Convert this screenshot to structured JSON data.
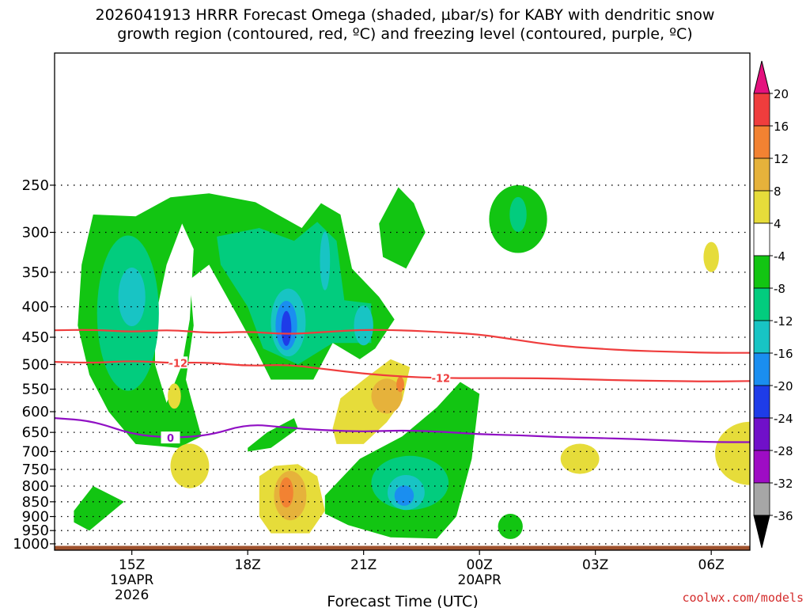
{
  "title_line1": "2026041913 HRRR Forecast Omega (shaded, µbar/s) for KABY with dendritic snow",
  "title_line2": "growth region (contoured, red, ºC) and freezing level (contoured, purple, ºC)",
  "watermark": "coolwx.com/models",
  "chart_data": {
    "type": "heatmap",
    "xlabel": "Forecast Time (UTC)",
    "x_ticks": [
      {
        "label": "15Z",
        "hour": 15,
        "sub": [
          "19APR",
          "2026"
        ]
      },
      {
        "label": "18Z",
        "hour": 18,
        "sub": []
      },
      {
        "label": "21Z",
        "hour": 21,
        "sub": []
      },
      {
        "label": "00Z",
        "hour": 24,
        "sub": [
          "20APR"
        ]
      },
      {
        "label": "03Z",
        "hour": 27,
        "sub": []
      },
      {
        "label": "06Z",
        "hour": 30,
        "sub": []
      }
    ],
    "xlim_hours": [
      13,
      31
    ],
    "y_axis": {
      "scale": "log-pressure",
      "range_hPa": [
        1025,
        150
      ]
    },
    "y_ticks": [
      250,
      300,
      350,
      400,
      450,
      500,
      550,
      600,
      650,
      700,
      750,
      800,
      850,
      900,
      950,
      1000
    ],
    "colorbar": {
      "levels": [
        20,
        16,
        12,
        8,
        4,
        -4,
        -8,
        -12,
        -16,
        -20,
        -24,
        -28,
        -32,
        -36
      ],
      "colors": [
        "#e4117e",
        "#ef3d3d",
        "#f28232",
        "#e6b23b",
        "#e6dc3a",
        "#ffffff",
        "#12c512",
        "#02cc7e",
        "#18c4c4",
        "#1a8ef0",
        "#1e3ce8",
        "#7010c9",
        "#9e0cc4",
        "#a6a6a6",
        "#000000"
      ]
    },
    "omega_features": [
      {
        "name": "upper ascent band",
        "hours": [
          13.5,
          18.5
        ],
        "hPa": [
          270,
          700
        ],
        "max_value": -16
      },
      {
        "name": "upper ascent core",
        "hours": [
          17.5,
          20.5
        ],
        "hPa": [
          260,
          530
        ],
        "max_value": -24
      },
      {
        "name": "lower ascent core",
        "hours": [
          20.5,
          23.5
        ],
        "hPa": [
          620,
          940
        ],
        "max_value": -20
      },
      {
        "name": "subsidence core",
        "hours": [
          21,
          22
        ],
        "hPa": [
          520,
          650
        ],
        "max_value": 12
      },
      {
        "name": "low level subsidence",
        "hours": [
          18.5,
          20
        ],
        "hPa": [
          720,
          950
        ],
        "max_value": 16
      }
    ],
    "contours": [
      {
        "color": "red",
        "label": "-12",
        "hours": [
          13,
          14,
          15,
          16,
          17,
          18,
          19,
          20,
          21,
          22,
          23,
          24,
          25,
          26,
          27,
          28,
          29,
          30,
          31
        ],
        "hPa": [
          495,
          497,
          493,
          497,
          496,
          503,
          500,
          509,
          518,
          524,
          527,
          527,
          527,
          528,
          530,
          532,
          533,
          534,
          533
        ]
      },
      {
        "color": "red",
        "label": "",
        "hours": [
          13,
          14,
          15,
          16,
          17,
          18,
          19,
          20,
          21,
          22,
          23,
          24,
          25,
          26,
          27,
          28,
          29,
          30,
          31
        ],
        "hPa": [
          438,
          437,
          441,
          437,
          443,
          440,
          445,
          441,
          437,
          438,
          441,
          445,
          455,
          465,
          470,
          474,
          476,
          478,
          478
        ]
      },
      {
        "color": "purple",
        "label": "0",
        "hours": [
          13,
          14,
          15,
          16,
          17,
          18,
          19,
          20,
          21,
          22,
          23,
          24,
          25,
          26,
          27,
          28,
          29,
          30,
          31
        ],
        "hPa": [
          615,
          622,
          655,
          664,
          658,
          629,
          638,
          645,
          648,
          645,
          648,
          655,
          657,
          662,
          664,
          667,
          671,
          675,
          675
        ]
      }
    ]
  }
}
